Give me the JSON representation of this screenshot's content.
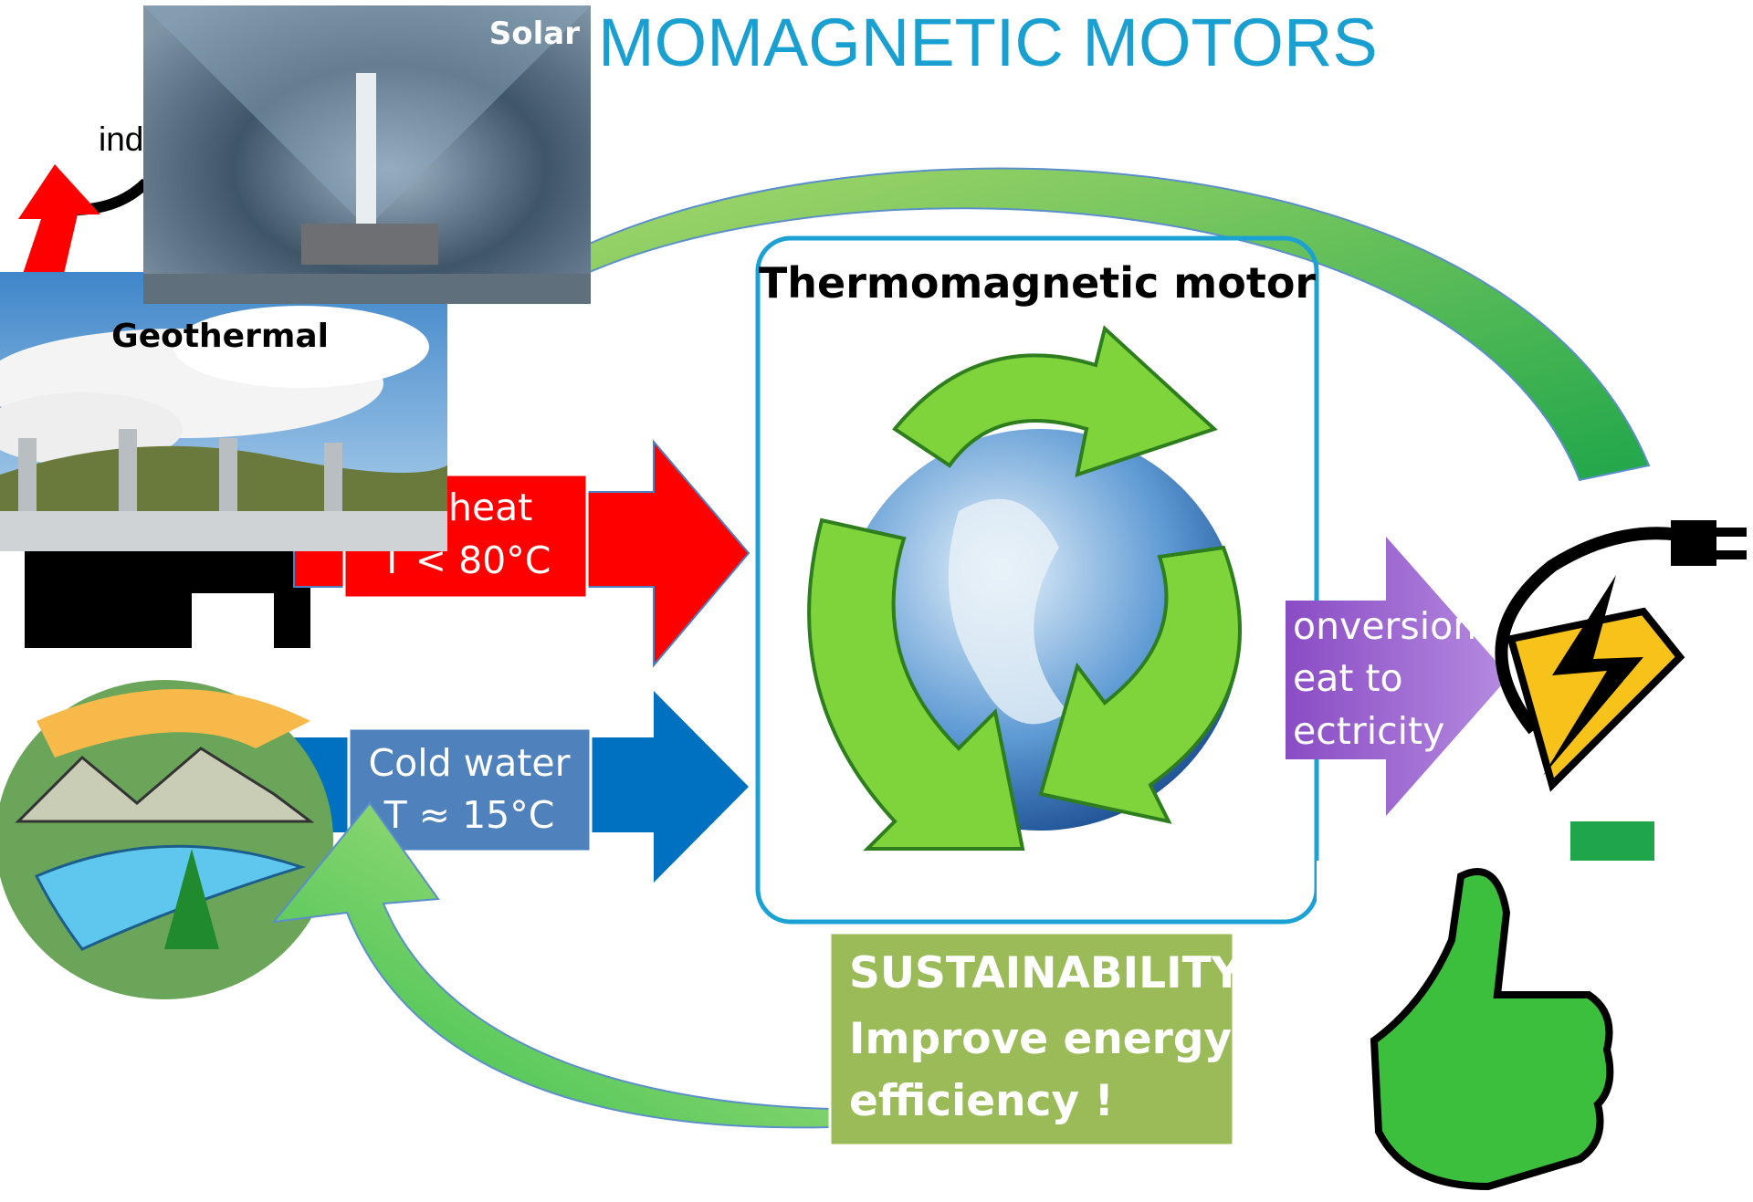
{
  "title": "MOMAGNETIC MOTORS",
  "images": {
    "solar": "Solar",
    "geothermal": "Geothermal",
    "industry": "ind"
  },
  "hot": {
    "line1": "te heat",
    "line2": "T < 80°C"
  },
  "cold": {
    "line1": "Cold water",
    "line2": "T ≈ 15°C"
  },
  "motor": {
    "label": "Thermomagnetic motor"
  },
  "conversion": {
    "line1": "onversion",
    "line2": "eat to",
    "line3": "ectricity"
  },
  "sustainability": {
    "line1": "SUSTAINABILITY",
    "line2": "Improve energy",
    "line3": "efficiency !"
  }
}
